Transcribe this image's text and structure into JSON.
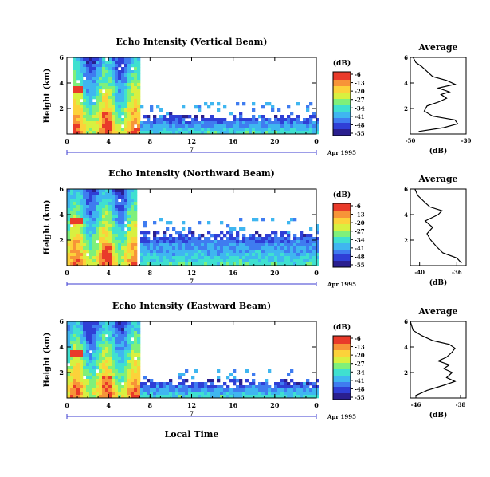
{
  "figure": {
    "xlabel": "Local Time",
    "date_label": "Apr 1995",
    "date_tick": "7"
  },
  "colors": {
    "scale": [
      "#2a1f8f",
      "#2f3fd6",
      "#3f7cf0",
      "#3fb6f0",
      "#3fe0d0",
      "#7ff07a",
      "#d8f040",
      "#fcd23a",
      "#f79438",
      "#e93a2a"
    ],
    "axis": "#000000",
    "date_bar": "#3b3bd0"
  },
  "chart_data": [
    {
      "type": "heatmap",
      "title": "Echo Intensity (Vertical Beam)",
      "ylabel": "Height (km)",
      "x_ticks": [
        "0",
        "4",
        "8",
        "12",
        "16",
        "20",
        "0"
      ],
      "y_ticks": [
        "6",
        "4",
        "2"
      ],
      "xlim": [
        0,
        24
      ],
      "ylim": [
        0,
        6
      ],
      "colorbar": {
        "unit": "(dB)",
        "ticks": [
          "-6",
          "-13",
          "-20",
          "-27",
          "-34",
          "-41",
          "-48",
          "-55"
        ]
      },
      "bands": [
        [
          0.5,
          6.0
        ],
        [
          3.0,
          4.5
        ],
        [
          5.5,
          6.8
        ]
      ],
      "floor_top_km": 1.4,
      "floor_start_h": 6.8,
      "average": {
        "title": "Average",
        "xlabel": "(dB)",
        "x_ticks": [
          "-50",
          "-30"
        ],
        "xlim": [
          -50,
          -30
        ],
        "y_ticks": [
          "6",
          "4",
          "2"
        ],
        "ylim": [
          0,
          6
        ],
        "profile": [
          [
            -47,
            0.2
          ],
          [
            -38,
            0.5
          ],
          [
            -33,
            0.8
          ],
          [
            -34,
            1.1
          ],
          [
            -42,
            1.4
          ],
          [
            -45,
            1.8
          ],
          [
            -44,
            2.2
          ],
          [
            -40,
            2.5
          ],
          [
            -37,
            2.8
          ],
          [
            -39,
            3.1
          ],
          [
            -36,
            3.3
          ],
          [
            -40,
            3.6
          ],
          [
            -34,
            3.9
          ],
          [
            -37,
            4.2
          ],
          [
            -42,
            4.5
          ],
          [
            -44,
            4.9
          ],
          [
            -46,
            5.3
          ],
          [
            -48,
            5.6
          ],
          [
            -49,
            6.0
          ]
        ]
      }
    },
    {
      "type": "heatmap",
      "title": "Echo Intensity (Northward Beam)",
      "ylabel": "Height (km)",
      "x_ticks": [
        "0",
        "4",
        "8",
        "12",
        "16",
        "20",
        "0"
      ],
      "y_ticks": [
        "6",
        "4",
        "2"
      ],
      "xlim": [
        0,
        24
      ],
      "ylim": [
        0,
        6
      ],
      "colorbar": {
        "unit": "(dB)",
        "ticks": [
          "-6",
          "-13",
          "-20",
          "-27",
          "-34",
          "-41",
          "-48",
          "-55"
        ]
      },
      "bands": [
        [
          0.0,
          6.5
        ]
      ],
      "floor_top_km": 2.6,
      "floor_start_h": 7.0,
      "average": {
        "title": "Average",
        "xlabel": "(dB)",
        "x_ticks": [
          "-40",
          "-36"
        ],
        "xlim": [
          -41,
          -35
        ],
        "y_ticks": [
          "6",
          "4",
          "2"
        ],
        "ylim": [
          0,
          6
        ],
        "profile": [
          [
            -35.5,
            0.2
          ],
          [
            -36,
            0.6
          ],
          [
            -37.5,
            1.0
          ],
          [
            -38.2,
            1.5
          ],
          [
            -38.8,
            2.0
          ],
          [
            -39.2,
            2.5
          ],
          [
            -38.6,
            3.0
          ],
          [
            -39.4,
            3.5
          ],
          [
            -38.0,
            4.0
          ],
          [
            -37.6,
            4.3
          ],
          [
            -38.9,
            4.6
          ],
          [
            -39.5,
            5.0
          ],
          [
            -40.2,
            5.5
          ],
          [
            -40.5,
            6.0
          ]
        ]
      }
    },
    {
      "type": "heatmap",
      "title": "Echo Intensity (Eastward Beam)",
      "ylabel": "Height (km)",
      "x_ticks": [
        "0",
        "4",
        "8",
        "12",
        "16",
        "20",
        "0"
      ],
      "y_ticks": [
        "6",
        "4",
        "2"
      ],
      "xlim": [
        0,
        24
      ],
      "ylim": [
        0,
        6
      ],
      "colorbar": {
        "unit": "(dB)",
        "ticks": [
          "-6",
          "-13",
          "-20",
          "-27",
          "-34",
          "-41",
          "-48",
          "-55"
        ]
      },
      "bands": [
        [
          0.0,
          6.0
        ],
        [
          3.0,
          4.4
        ],
        [
          5.5,
          7.0
        ]
      ],
      "floor_top_km": 1.3,
      "floor_start_h": 7.0,
      "average": {
        "title": "Average",
        "xlabel": "(dB)",
        "x_ticks": [
          "-46",
          "-38"
        ],
        "xlim": [
          -47,
          -37
        ],
        "y_ticks": [
          "6",
          "4",
          "2"
        ],
        "ylim": [
          0,
          6
        ],
        "profile": [
          [
            -46,
            0.2
          ],
          [
            -44,
            0.6
          ],
          [
            -41,
            1.0
          ],
          [
            -39,
            1.3
          ],
          [
            -40.5,
            1.6
          ],
          [
            -39.5,
            2.0
          ],
          [
            -41,
            2.3
          ],
          [
            -40,
            2.6
          ],
          [
            -42,
            2.9
          ],
          [
            -40.5,
            3.2
          ],
          [
            -39.5,
            3.6
          ],
          [
            -39,
            3.9
          ],
          [
            -40,
            4.2
          ],
          [
            -43,
            4.5
          ],
          [
            -45,
            4.9
          ],
          [
            -46.5,
            5.3
          ],
          [
            -47,
            6.0
          ]
        ]
      }
    }
  ]
}
